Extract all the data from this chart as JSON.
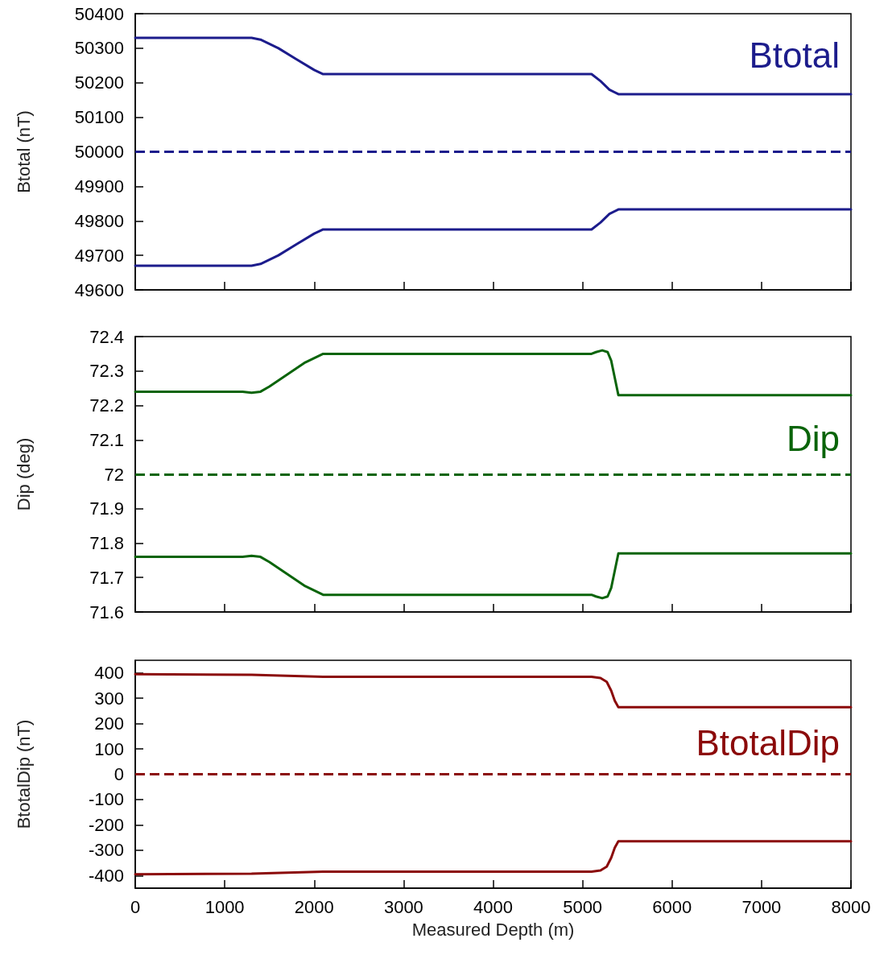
{
  "chart_data": [
    {
      "type": "line",
      "ylabel": "Btotal (nT)",
      "xlim": [
        0,
        8000
      ],
      "xticks": [
        0,
        1000,
        2000,
        3000,
        4000,
        5000,
        6000,
        7000,
        8000
      ],
      "ylim": [
        49600,
        50400
      ],
      "yticks": [
        49600,
        49700,
        49800,
        49900,
        50000,
        50100,
        50200,
        50300,
        50400
      ],
      "tick_labels": "y",
      "marker": "none",
      "line_style": "solid",
      "grid": false,
      "annotations": [
        "Btotal"
      ],
      "series": [
        {
          "color": "#1c1c8c",
          "x": [
            0,
            1300,
            1400,
            1600,
            1800,
            2000,
            2100,
            5100,
            5200,
            5300,
            5400,
            8000
          ],
          "values": [
            50330,
            50330,
            50325,
            50300,
            50268,
            50237,
            50225,
            50225,
            50205,
            50180,
            50167,
            50167
          ]
        },
        {
          "color": "#1c1c8c",
          "x": [
            0,
            1300,
            1400,
            1600,
            1800,
            2000,
            2100,
            5100,
            5200,
            5300,
            5400,
            8000
          ],
          "values": [
            49670,
            49670,
            49675,
            49700,
            49732,
            49763,
            49775,
            49775,
            49795,
            49820,
            49833,
            49833
          ]
        }
      ],
      "ref_lines": [
        {
          "axis": "y",
          "value": 50000,
          "color": "#1c1c8c",
          "line_style": "dashed"
        }
      ]
    },
    {
      "type": "line",
      "ylabel": "Dip (deg)",
      "xlim": [
        0,
        8000
      ],
      "xticks": [
        0,
        1000,
        2000,
        3000,
        4000,
        5000,
        6000,
        7000,
        8000
      ],
      "ylim": [
        71.6,
        72.4
      ],
      "yticks": [
        71.6,
        71.7,
        71.8,
        71.9,
        72,
        72.1,
        72.2,
        72.3,
        72.4
      ],
      "tick_labels": "y",
      "marker": "none",
      "line_style": "solid",
      "grid": false,
      "annotations": [
        "Dip"
      ],
      "series": [
        {
          "color": "#0a640a",
          "x": [
            0,
            1200,
            1300,
            1400,
            1500,
            1700,
            1900,
            2100,
            5100,
            5150,
            5220,
            5280,
            5320,
            5360,
            5400,
            8000
          ],
          "values": [
            72.24,
            72.24,
            72.237,
            72.24,
            72.255,
            72.29,
            72.325,
            72.35,
            72.35,
            72.355,
            72.36,
            72.355,
            72.33,
            72.28,
            72.23,
            72.23
          ]
        },
        {
          "color": "#0a640a",
          "x": [
            0,
            1200,
            1300,
            1400,
            1500,
            1700,
            1900,
            2100,
            5100,
            5150,
            5220,
            5280,
            5320,
            5360,
            5400,
            8000
          ],
          "values": [
            71.76,
            71.76,
            71.763,
            71.76,
            71.745,
            71.71,
            71.675,
            71.65,
            71.65,
            71.645,
            71.64,
            71.645,
            71.67,
            71.72,
            71.77,
            71.77
          ]
        }
      ],
      "ref_lines": [
        {
          "axis": "y",
          "value": 72,
          "color": "#0a640a",
          "line_style": "dashed"
        }
      ]
    },
    {
      "type": "line",
      "ylabel": "BtotalDip (nT)",
      "xlabel": "Measured Depth (m)",
      "xlim": [
        0,
        8000
      ],
      "xticks": [
        0,
        1000,
        2000,
        3000,
        4000,
        5000,
        6000,
        7000,
        8000
      ],
      "ylim": [
        -450,
        450
      ],
      "yticks": [
        -400,
        -300,
        -200,
        -100,
        0,
        100,
        200,
        300,
        400
      ],
      "marker": "none",
      "line_style": "solid",
      "grid": false,
      "annotations": [
        "BtotalDip"
      ],
      "series": [
        {
          "color": "#8b0a0a",
          "x": [
            0,
            1300,
            2100,
            5100,
            5200,
            5270,
            5320,
            5360,
            5400,
            8000
          ],
          "values": [
            395,
            393,
            385,
            385,
            380,
            365,
            330,
            290,
            265,
            265
          ]
        },
        {
          "color": "#8b0a0a",
          "x": [
            0,
            1300,
            2100,
            5100,
            5200,
            5270,
            5320,
            5360,
            5400,
            8000
          ],
          "values": [
            -395,
            -393,
            -385,
            -385,
            -380,
            -365,
            -330,
            -290,
            -265,
            -265
          ]
        }
      ],
      "ref_lines": [
        {
          "axis": "y",
          "value": 0,
          "color": "#8b0a0a",
          "line_style": "dashed"
        }
      ]
    }
  ]
}
